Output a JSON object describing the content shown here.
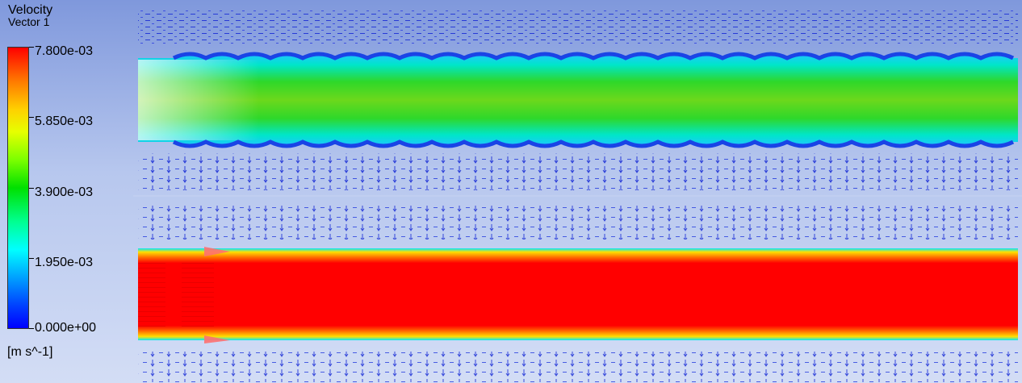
{
  "legend": {
    "title_line1": "Velocity",
    "title_line2": "Vector 1",
    "units": "[m s^-1]",
    "ticks": [
      "7.800e-03",
      "5.850e-03",
      "3.900e-03",
      "1.950e-03",
      "0.000e+00"
    ],
    "colormap": [
      "#ff0000",
      "#ff8a00",
      "#ffff00",
      "#00dd00",
      "#00ffff",
      "#0000ff"
    ]
  },
  "colors": {
    "background_top": "#7f98dc",
    "background_bottom": "#d3ddf5",
    "upper_channel_core": "#22ce2a",
    "lower_channel_core": "#ff0000",
    "wall_vectors": "#1c2fd6"
  }
}
